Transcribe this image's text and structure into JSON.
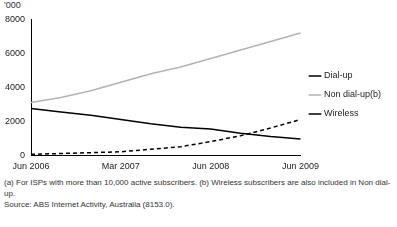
{
  "chart_data": {
    "type": "line",
    "y_label": "'000",
    "categories": [
      "Jun 2006",
      null,
      null,
      "Mar 2007",
      null,
      null,
      "Jun 2008",
      null,
      null,
      "Jun 2009"
    ],
    "series": [
      {
        "name": "Dial-up",
        "color": "#000000",
        "line_style": "solid",
        "values": [
          2750,
          2550,
          2350,
          2100,
          1850,
          1650,
          1550,
          1300,
          1100,
          950
        ]
      },
      {
        "name": "Non dial-up(b)",
        "color": "#b3b3b3",
        "line_style": "solid",
        "values": [
          3100,
          3400,
          3800,
          4300,
          4800,
          5200,
          5700,
          6200,
          6700,
          7200
        ]
      },
      {
        "name": "Wireless",
        "color": "#000000",
        "line_style": "dashed",
        "values": [
          50,
          100,
          150,
          200,
          350,
          500,
          800,
          1150,
          1600,
          2100
        ]
      }
    ],
    "ylim": [
      0,
      8000
    ],
    "yticks": [
      0,
      2000,
      4000,
      6000,
      8000
    ],
    "grid": false,
    "legend": "right",
    "annotations": [
      "(a) For ISPs with more than 10,000 active subscribers. (b) Wireless subscribers are also included in Non dial-up.",
      "Source: ABS Internet Activity, Australia (8153.0)."
    ]
  }
}
